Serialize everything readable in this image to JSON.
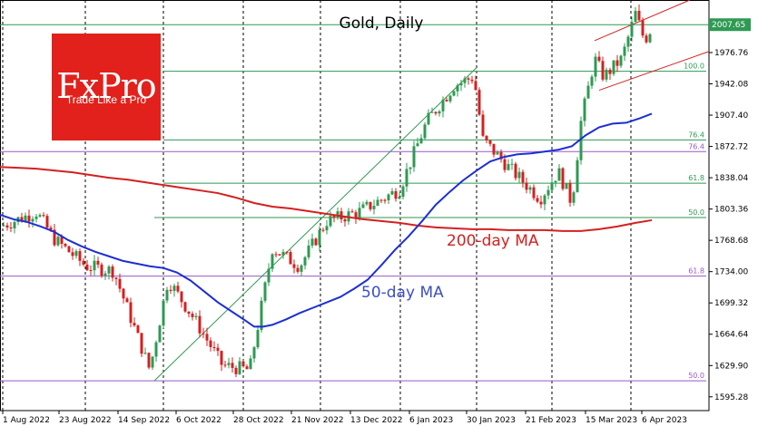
{
  "chart_data": {
    "type": "candlestick",
    "title": "Gold, Daily",
    "instrument_price": "2007.65",
    "ylim": [
      1580,
      2035
    ],
    "y_ticks": [
      1595.28,
      1629.9,
      1664.64,
      1699.32,
      1734.0,
      1768.68,
      1803.36,
      1838.04,
      1872.72,
      1907.4,
      1942.08,
      1976.76
    ],
    "x_ticks": [
      "1 Aug 2022",
      "23 Aug 2022",
      "14 Sep 2022",
      "6 Oct 2022",
      "28 Oct 2022",
      "21 Nov 2022",
      "13 Dec 2022",
      "6 Jan 2023",
      "30 Jan 2023",
      "21 Feb 2023",
      "15 Mar 2023",
      "6 Apr 2023"
    ],
    "series": [
      {
        "name": "200-day MA",
        "color": "#d42020"
      },
      {
        "name": "50-day MA",
        "color": "#1c2fd4"
      }
    ],
    "moving_averages": {
      "ma200": [
        [
          0,
          1850
        ],
        [
          20,
          1849
        ],
        [
          40,
          1848
        ],
        [
          60,
          1846
        ],
        [
          80,
          1844
        ],
        [
          100,
          1841
        ],
        [
          120,
          1838
        ],
        [
          140,
          1836
        ],
        [
          160,
          1833
        ],
        [
          180,
          1830
        ],
        [
          200,
          1827
        ],
        [
          220,
          1824
        ],
        [
          240,
          1821
        ],
        [
          260,
          1816
        ],
        [
          280,
          1810
        ],
        [
          300,
          1806
        ],
        [
          320,
          1804
        ],
        [
          340,
          1801
        ],
        [
          360,
          1798
        ],
        [
          380,
          1795
        ],
        [
          400,
          1792
        ],
        [
          420,
          1790
        ],
        [
          440,
          1788
        ],
        [
          460,
          1785
        ],
        [
          480,
          1783
        ],
        [
          500,
          1782
        ],
        [
          520,
          1781
        ],
        [
          540,
          1781
        ],
        [
          560,
          1780
        ],
        [
          580,
          1780
        ],
        [
          600,
          1780
        ],
        [
          620,
          1779
        ],
        [
          640,
          1779
        ],
        [
          660,
          1781
        ],
        [
          680,
          1784
        ],
        [
          700,
          1788
        ],
        [
          718,
          1791
        ]
      ],
      "ma50": [
        [
          0,
          1797
        ],
        [
          15,
          1792
        ],
        [
          30,
          1789
        ],
        [
          45,
          1784
        ],
        [
          60,
          1778
        ],
        [
          75,
          1769
        ],
        [
          90,
          1762
        ],
        [
          105,
          1756
        ],
        [
          120,
          1751
        ],
        [
          135,
          1746
        ],
        [
          150,
          1743
        ],
        [
          165,
          1740
        ],
        [
          180,
          1738
        ],
        [
          195,
          1733
        ],
        [
          210,
          1724
        ],
        [
          225,
          1712
        ],
        [
          240,
          1700
        ],
        [
          255,
          1690
        ],
        [
          270,
          1680
        ],
        [
          280,
          1673
        ],
        [
          290,
          1673
        ],
        [
          300,
          1675
        ],
        [
          315,
          1681
        ],
        [
          330,
          1688
        ],
        [
          345,
          1694
        ],
        [
          360,
          1700
        ],
        [
          375,
          1706
        ],
        [
          390,
          1715
        ],
        [
          405,
          1725
        ],
        [
          420,
          1741
        ],
        [
          435,
          1758
        ],
        [
          450,
          1773
        ],
        [
          465,
          1790
        ],
        [
          480,
          1808
        ],
        [
          495,
          1822
        ],
        [
          510,
          1835
        ],
        [
          525,
          1846
        ],
        [
          540,
          1856
        ],
        [
          555,
          1861
        ],
        [
          570,
          1864
        ],
        [
          585,
          1865
        ],
        [
          600,
          1867
        ],
        [
          615,
          1869
        ],
        [
          630,
          1873
        ],
        [
          645,
          1885
        ],
        [
          660,
          1894
        ],
        [
          675,
          1898
        ],
        [
          690,
          1899
        ],
        [
          705,
          1904
        ],
        [
          718,
          1909
        ]
      ]
    },
    "fib_levels": [
      {
        "label": "100.0",
        "value": 1956,
        "x0": 180,
        "x1": 778
      },
      {
        "label": "76.4",
        "value": 1880,
        "x0": 180,
        "x1": 778
      },
      {
        "label": "61.8",
        "value": 1832,
        "x0": 180,
        "x1": 778
      },
      {
        "label": "50.0",
        "value": 1794,
        "x0": 170,
        "x1": 778
      },
      {
        "label": "76.4",
        "value": 1867,
        "x0": 0,
        "x1": 778
      },
      {
        "label": "61.8",
        "value": 1729,
        "x0": 0,
        "x1": 778
      },
      {
        "label": "50.0",
        "value": 1613,
        "x0": 0,
        "x1": 778
      }
    ],
    "reference_line": 2007.65,
    "annotations": [
      {
        "text": "200-day MA",
        "color": "#d42020"
      },
      {
        "text": "50-day MA",
        "color": "#3b4fc4"
      }
    ]
  },
  "logo": {
    "brand": "FxPro",
    "tagline": "Trade Like a Pro"
  }
}
